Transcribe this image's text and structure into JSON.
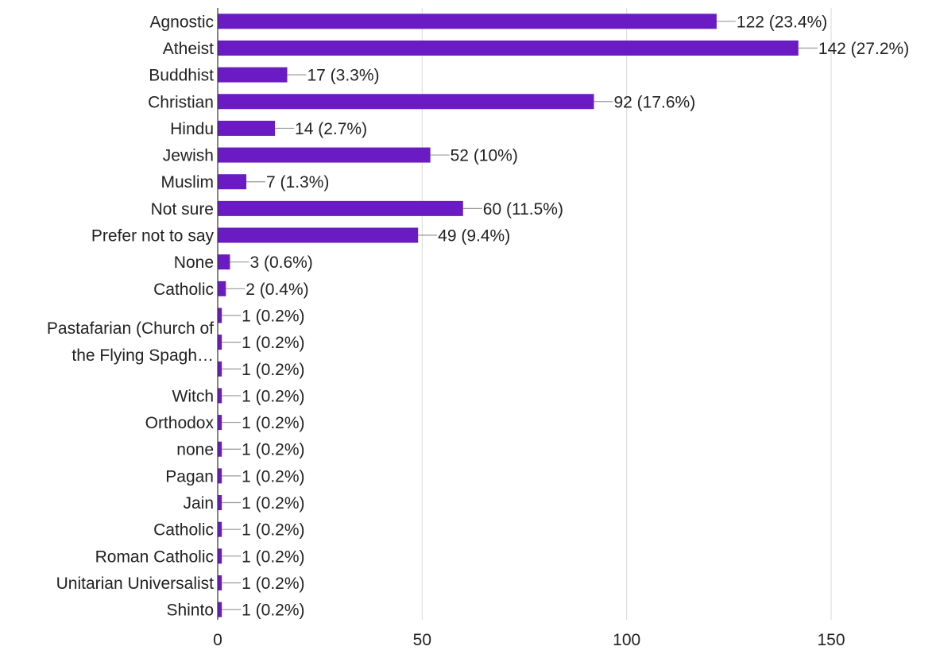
{
  "colors": {
    "bar": "#6a1bc4",
    "grid": "#d9d9d9",
    "axis": "#333333",
    "leader": "#9a9a9a",
    "text": "#222222"
  },
  "chart_data": {
    "type": "bar",
    "orientation": "horizontal",
    "title": "",
    "xlabel": "",
    "ylabel": "",
    "xlim": [
      0,
      150
    ],
    "xticks": [
      0,
      50,
      100,
      150
    ],
    "grid": true,
    "categories": [
      "Agnostic",
      "Atheist",
      "Buddhist",
      "Christian",
      "Hindu",
      "Jewish",
      "Muslim",
      "Not sure",
      "Prefer not to say",
      "None",
      "Catholic",
      "",
      "",
      "",
      "Witch",
      "Orthodox",
      "none",
      "Pagan",
      "Jain",
      "Catholic",
      "Roman Catholic",
      "Unitarian Universalist",
      "Shinto"
    ],
    "wrapped_label": {
      "rows": [
        11,
        13
      ],
      "lines": [
        "Pastafarian (Church of",
        "the Flying Spagh…"
      ]
    },
    "values": [
      122,
      142,
      17,
      92,
      14,
      52,
      7,
      60,
      49,
      3,
      2,
      1,
      1,
      1,
      1,
      1,
      1,
      1,
      1,
      1,
      1,
      1,
      1
    ],
    "data_labels": [
      "122 (23.4%)",
      "142 (27.2%)",
      "17 (3.3%)",
      "92 (17.6%)",
      "14 (2.7%)",
      "52 (10%)",
      "7 (1.3%)",
      "60 (11.5%)",
      "49 (9.4%)",
      "3 (0.6%)",
      "2 (0.4%)",
      "1 (0.2%)",
      "1 (0.2%)",
      "1 (0.2%)",
      "1 (0.2%)",
      "1 (0.2%)",
      "1 (0.2%)",
      "1 (0.2%)",
      "1 (0.2%)",
      "1 (0.2%)",
      "1 (0.2%)",
      "1 (0.2%)",
      "1 (0.2%)"
    ]
  }
}
